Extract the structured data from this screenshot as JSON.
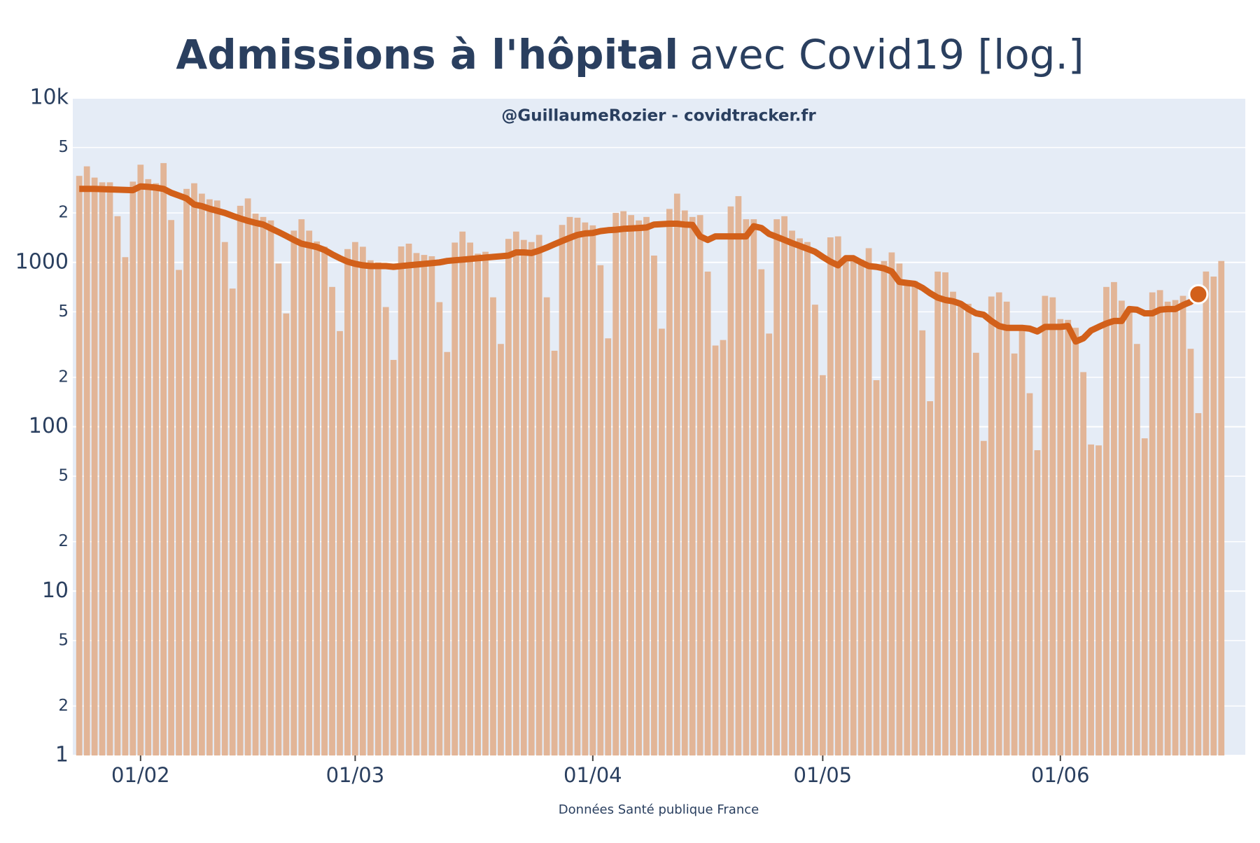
{
  "chart_data": {
    "type": "bar",
    "title": "Admissions à l'hôpital",
    "title_suffix": "avec Covid19 [log.]",
    "annotation": "@GuillaumeRozier - covidtracker.fr",
    "xlabel": "Données Santé publique France",
    "log": true,
    "grid": true,
    "background": "#e5ecf6",
    "ylim": [
      1,
      10000
    ],
    "yticks": [
      1,
      2,
      5,
      10,
      {
        "value": 20,
        "label": "2"
      },
      {
        "value": 50,
        "label": "5"
      },
      100,
      {
        "value": 200,
        "label": "2"
      },
      {
        "value": 500,
        "label": "5"
      },
      1000,
      {
        "value": 2000,
        "label": "2"
      },
      {
        "value": 5000,
        "label": "5"
      },
      {
        "value": 10000,
        "label": "10k"
      }
    ],
    "xticks": [
      "01/02",
      "01/03",
      "01/04",
      "01/05",
      "01/06"
    ],
    "x": [
      "24/01",
      "25/01",
      "26/01",
      "27/01",
      "28/01",
      "29/01",
      "30/01",
      "31/01",
      "01/02",
      "02/02",
      "03/02",
      "04/02",
      "05/02",
      "06/02",
      "07/02",
      "08/02",
      "09/02",
      "10/02",
      "11/02",
      "12/02",
      "13/02",
      "14/02",
      "15/02",
      "16/02",
      "17/02",
      "18/02",
      "19/02",
      "20/02",
      "21/02",
      "22/02",
      "23/02",
      "24/02",
      "25/02",
      "26/02",
      "27/02",
      "28/02",
      "01/03",
      "02/03",
      "03/03",
      "04/03",
      "05/03",
      "06/03",
      "07/03",
      "08/03",
      "09/03",
      "10/03",
      "11/03",
      "12/03",
      "13/03",
      "14/03",
      "15/03",
      "16/03",
      "17/03",
      "18/03",
      "19/03",
      "20/03",
      "21/03",
      "22/03",
      "23/03",
      "24/03",
      "25/03",
      "26/03",
      "27/03",
      "28/03",
      "29/03",
      "30/03",
      "31/03",
      "01/04",
      "02/04",
      "03/04",
      "04/04",
      "05/04",
      "06/04",
      "07/04",
      "08/04",
      "09/04",
      "10/04",
      "11/04",
      "12/04",
      "13/04",
      "14/04",
      "15/04",
      "16/04",
      "17/04",
      "18/04",
      "19/04",
      "20/04",
      "21/04",
      "22/04",
      "23/04",
      "24/04",
      "25/04",
      "26/04",
      "27/04",
      "28/04",
      "29/04",
      "30/04",
      "01/05",
      "02/05",
      "03/05",
      "04/05",
      "05/05",
      "06/05",
      "07/05",
      "08/05",
      "09/05",
      "10/05",
      "11/05",
      "12/05",
      "13/05",
      "14/05",
      "15/05",
      "16/05",
      "17/05",
      "18/05",
      "19/05",
      "20/05",
      "21/05",
      "22/05",
      "23/05",
      "24/05",
      "25/05",
      "26/05",
      "27/05",
      "28/05",
      "29/05",
      "30/05",
      "31/05",
      "01/06",
      "02/06",
      "03/06",
      "04/06",
      "05/06",
      "06/06",
      "07/06",
      "08/06",
      "09/06",
      "10/06",
      "11/06",
      "12/06",
      "13/06",
      "14/06",
      "15/06",
      "16/06",
      "17/06",
      "18/06",
      "19/06",
      "20/06",
      "21/06",
      "22/06"
    ],
    "series": [
      {
        "type": "bar",
        "color": "#e2b597",
        "values": [
          3360,
          3840,
          3280,
          3070,
          3070,
          1910,
          1076,
          3100,
          3930,
          3210,
          3030,
          4020,
          1810,
          900,
          2800,
          3030,
          2620,
          2420,
          2380,
          1330,
          693,
          2210,
          2450,
          1980,
          1890,
          1800,
          984,
          489,
          1560,
          1830,
          1560,
          1340,
          1245,
          709,
          382,
          1205,
          1330,
          1245,
          1030,
          1000,
          535,
          255,
          1250,
          1300,
          1140,
          1110,
          1090,
          573,
          285,
          1320,
          1540,
          1320,
          1130,
          1160,
          613,
          319,
          1390,
          1540,
          1370,
          1330,
          1470,
          613,
          290,
          1690,
          1890,
          1870,
          1750,
          1680,
          961,
          345,
          2000,
          2050,
          1940,
          1800,
          1890,
          1100,
          395,
          2115,
          2620,
          2070,
          1890,
          1940,
          879,
          312,
          337,
          2190,
          2530,
          1830,
          1830,
          908,
          369,
          1830,
          1910,
          1560,
          1400,
          1330,
          553,
          206,
          1420,
          1440,
          1076,
          1020,
          1040,
          1220,
          192,
          1020,
          1150,
          984,
          776,
          770,
          386,
          143,
          879,
          870,
          663,
          573,
          560,
          282,
          82,
          620,
          657,
          577,
          279,
          386,
          160,
          72,
          626,
          613,
          452,
          447,
          400,
          215,
          78,
          77,
          709,
          759,
          585,
          500,
          319,
          85,
          657,
          678,
          577,
          590,
          626,
          298,
          121,
          880,
          820,
          1020
        ]
      },
      {
        "type": "line",
        "color": "#d2601a",
        "end_marker": true,
        "values": [
          2800,
          2800,
          2800,
          2790,
          2780,
          2770,
          2760,
          2750,
          2900,
          2880,
          2850,
          2800,
          2650,
          2550,
          2450,
          2250,
          2200,
          2120,
          2060,
          2000,
          1920,
          1850,
          1790,
          1740,
          1700,
          1610,
          1530,
          1450,
          1370,
          1300,
          1270,
          1240,
          1190,
          1120,
          1060,
          1010,
          980,
          960,
          950,
          950,
          950,
          940,
          950,
          960,
          970,
          980,
          990,
          1000,
          1020,
          1030,
          1040,
          1050,
          1060,
          1070,
          1080,
          1090,
          1100,
          1150,
          1150,
          1140,
          1180,
          1230,
          1290,
          1350,
          1410,
          1470,
          1500,
          1510,
          1550,
          1570,
          1580,
          1600,
          1610,
          1620,
          1630,
          1700,
          1710,
          1720,
          1720,
          1700,
          1690,
          1440,
          1370,
          1440,
          1440,
          1440,
          1440,
          1440,
          1660,
          1620,
          1490,
          1430,
          1370,
          1310,
          1260,
          1210,
          1160,
          1080,
          1010,
          960,
          1060,
          1060,
          1000,
          950,
          940,
          920,
          880,
          760,
          750,
          740,
          700,
          650,
          610,
          590,
          580,
          560,
          520,
          490,
          480,
          440,
          410,
          400,
          400,
          400,
          395,
          380,
          405,
          405,
          405,
          410,
          330,
          345,
          385,
          405,
          425,
          440,
          440,
          520,
          515,
          490,
          490,
          515,
          520,
          520,
          550,
          575,
          640,
          null,
          null,
          null
        ]
      }
    ]
  }
}
